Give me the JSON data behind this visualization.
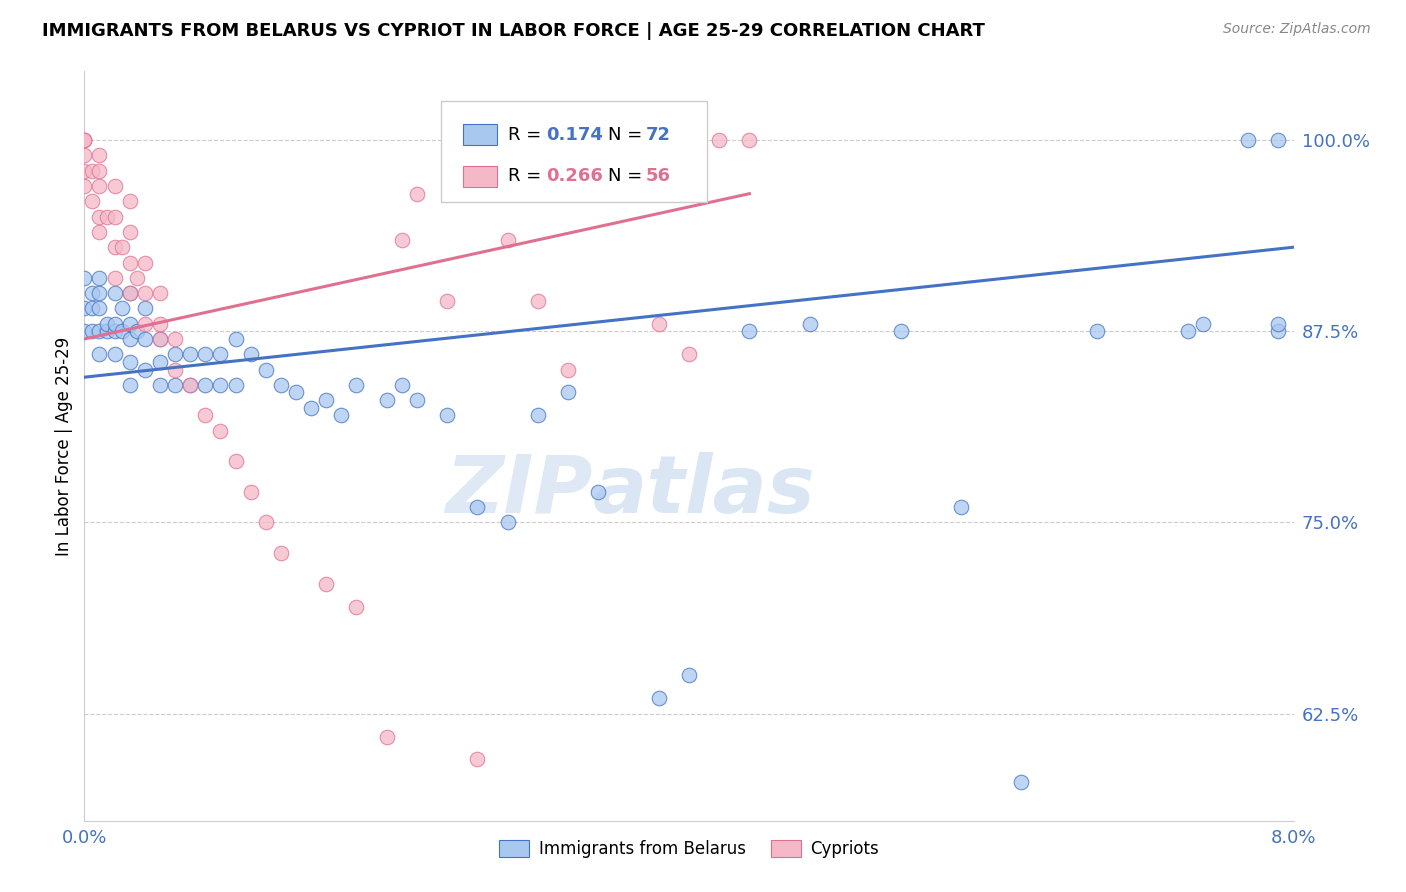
{
  "title": "IMMIGRANTS FROM BELARUS VS CYPRIOT IN LABOR FORCE | AGE 25-29 CORRELATION CHART",
  "source": "Source: ZipAtlas.com",
  "ylabel": "In Labor Force | Age 25-29",
  "yticks": [
    0.625,
    0.75,
    0.875,
    1.0
  ],
  "ytick_labels": [
    "62.5%",
    "75.0%",
    "87.5%",
    "100.0%"
  ],
  "xmin": 0.0,
  "xmax": 0.08,
  "ymin": 0.555,
  "ymax": 1.045,
  "blue_color": "#a8c8f0",
  "pink_color": "#f5b8c8",
  "line_blue": "#4472c4",
  "line_pink": "#e07090",
  "axis_color": "#4472c4",
  "watermark_zip": "ZIP",
  "watermark_atlas": "atlas",
  "blue_x": [
    0.0,
    0.0,
    0.0,
    0.0005,
    0.0005,
    0.0005,
    0.001,
    0.001,
    0.001,
    0.001,
    0.001,
    0.0015,
    0.0015,
    0.002,
    0.002,
    0.002,
    0.002,
    0.0025,
    0.0025,
    0.003,
    0.003,
    0.003,
    0.003,
    0.003,
    0.0035,
    0.004,
    0.004,
    0.004,
    0.005,
    0.005,
    0.005,
    0.006,
    0.006,
    0.007,
    0.007,
    0.008,
    0.008,
    0.009,
    0.009,
    0.01,
    0.01,
    0.011,
    0.012,
    0.013,
    0.014,
    0.015,
    0.016,
    0.017,
    0.018,
    0.02,
    0.021,
    0.022,
    0.024,
    0.026,
    0.028,
    0.03,
    0.032,
    0.034,
    0.038,
    0.04,
    0.044,
    0.048,
    0.054,
    0.058,
    0.062,
    0.067,
    0.073,
    0.074,
    0.077,
    0.079,
    0.079,
    0.079
  ],
  "blue_y": [
    0.875,
    0.89,
    0.91,
    0.875,
    0.89,
    0.9,
    0.86,
    0.875,
    0.89,
    0.9,
    0.91,
    0.875,
    0.88,
    0.86,
    0.875,
    0.88,
    0.9,
    0.875,
    0.89,
    0.84,
    0.855,
    0.87,
    0.88,
    0.9,
    0.875,
    0.85,
    0.87,
    0.89,
    0.84,
    0.855,
    0.87,
    0.84,
    0.86,
    0.84,
    0.86,
    0.84,
    0.86,
    0.84,
    0.86,
    0.84,
    0.87,
    0.86,
    0.85,
    0.84,
    0.835,
    0.825,
    0.83,
    0.82,
    0.84,
    0.83,
    0.84,
    0.83,
    0.82,
    0.76,
    0.75,
    0.82,
    0.835,
    0.77,
    0.635,
    0.65,
    0.875,
    0.88,
    0.875,
    0.76,
    0.58,
    0.875,
    0.875,
    0.88,
    1.0,
    0.875,
    0.88,
    1.0
  ],
  "pink_x": [
    0.0,
    0.0,
    0.0,
    0.0,
    0.0,
    0.0,
    0.0005,
    0.0005,
    0.001,
    0.001,
    0.001,
    0.001,
    0.001,
    0.0015,
    0.002,
    0.002,
    0.002,
    0.002,
    0.0025,
    0.003,
    0.003,
    0.003,
    0.003,
    0.0035,
    0.004,
    0.004,
    0.004,
    0.005,
    0.005,
    0.005,
    0.006,
    0.006,
    0.007,
    0.008,
    0.009,
    0.01,
    0.011,
    0.012,
    0.013,
    0.016,
    0.018,
    0.02,
    0.021,
    0.022,
    0.024,
    0.026,
    0.028,
    0.03,
    0.032,
    0.034,
    0.036,
    0.038,
    0.04,
    0.042,
    0.044
  ],
  "pink_y": [
    0.97,
    0.98,
    0.99,
    1.0,
    1.0,
    1.0,
    0.96,
    0.98,
    0.94,
    0.95,
    0.97,
    0.98,
    0.99,
    0.95,
    0.91,
    0.93,
    0.95,
    0.97,
    0.93,
    0.9,
    0.92,
    0.94,
    0.96,
    0.91,
    0.88,
    0.9,
    0.92,
    0.87,
    0.88,
    0.9,
    0.85,
    0.87,
    0.84,
    0.82,
    0.81,
    0.79,
    0.77,
    0.75,
    0.73,
    0.71,
    0.695,
    0.61,
    0.935,
    0.965,
    0.895,
    0.595,
    0.935,
    0.895,
    0.85,
    1.0,
    1.0,
    0.88,
    0.86,
    1.0,
    1.0
  ]
}
